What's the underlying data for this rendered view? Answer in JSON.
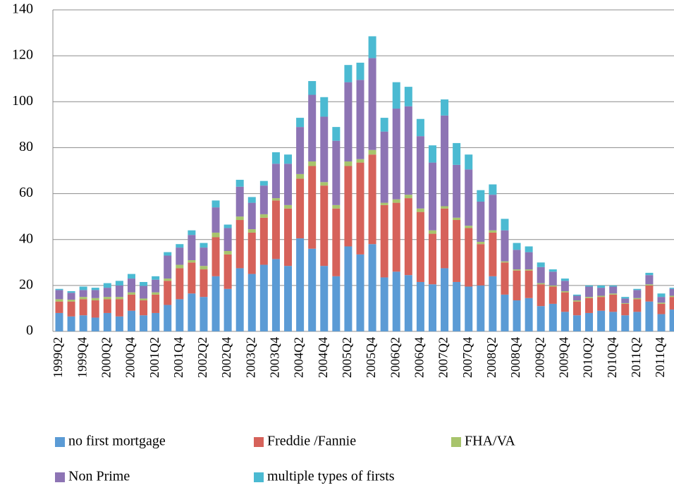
{
  "chart_data": {
    "type": "stacked-bar",
    "categories": [
      "1999Q2",
      null,
      "1999Q4",
      null,
      "2000Q2",
      null,
      "2000Q4",
      null,
      "2001Q2",
      null,
      "2001Q4",
      null,
      "2002Q2",
      null,
      "2002Q4",
      null,
      "2003Q2",
      null,
      "2003Q4",
      null,
      "2004Q2",
      null,
      "2004Q4",
      null,
      "2005Q2",
      null,
      "2005Q4",
      null,
      "2006Q2",
      null,
      "2006Q4",
      null,
      "2007Q2",
      null,
      "2007Q4",
      null,
      "2008Q2",
      null,
      "2008Q4",
      null,
      "2009Q2",
      null,
      "2009Q4",
      null,
      "2010Q2",
      null,
      "2010Q4",
      null,
      "2011Q2",
      null,
      "2011Q4",
      null
    ],
    "series": [
      {
        "name": "no first mortgage",
        "color": "#5b9bd5",
        "values": [
          8,
          6.5,
          7,
          6,
          8,
          6.5,
          9,
          7,
          8,
          11.5,
          14,
          16.5,
          15,
          24,
          18.5,
          27.5,
          25,
          29,
          31.5,
          28.5,
          40.5,
          36,
          28.5,
          24,
          37,
          33.5,
          38,
          23.5,
          26,
          24.5,
          21.5,
          20.5,
          27.5,
          21.5,
          19.5,
          20,
          24,
          16,
          13.5,
          14.5,
          11,
          12,
          8.5,
          7,
          8,
          9,
          8.5,
          7,
          8.5,
          13,
          7.5,
          9.5
        ]
      },
      {
        "name": "Freddie /Fannie",
        "color": "#d6625a",
        "values": [
          5,
          6.5,
          7,
          7.5,
          6,
          7.5,
          7,
          6.5,
          8,
          10.5,
          13.5,
          13.5,
          12,
          17,
          15,
          21,
          18,
          20.5,
          25.5,
          25,
          26,
          36,
          35,
          29.5,
          35,
          40,
          39,
          31.5,
          30,
          33.5,
          30.5,
          22,
          26,
          27,
          25.5,
          18,
          19,
          14,
          13,
          12,
          9.5,
          7.5,
          8.5,
          6,
          6.5,
          6,
          7.5,
          5,
          5.5,
          7,
          4.5,
          5.5
        ]
      },
      {
        "name": "FHA/VA",
        "color": "#a8c46c",
        "values": [
          1,
          0.8,
          1,
          1,
          1,
          1,
          1,
          0.8,
          1,
          1,
          1.5,
          1,
          1.5,
          2,
          1.5,
          1.5,
          1.5,
          1.5,
          1,
          1.5,
          2,
          2,
          1.5,
          1.5,
          2,
          1.5,
          2,
          1,
          1.5,
          1.5,
          1.5,
          1.5,
          1,
          1,
          1,
          1,
          1,
          0.5,
          0.5,
          0.5,
          0.5,
          0.5,
          0.5,
          0.5,
          0.5,
          0.5,
          0.5,
          0.3,
          0.5,
          0.5,
          0.5,
          0.5
        ]
      },
      {
        "name": "Non Prime",
        "color": "#8d74b4",
        "values": [
          4,
          3,
          3,
          3.5,
          4,
          5,
          6,
          5.5,
          5.5,
          10,
          7.5,
          11,
          8,
          11,
          10,
          13,
          11.5,
          12.5,
          15,
          18,
          20.5,
          29,
          28.5,
          28,
          34.5,
          34.5,
          40,
          31,
          39.5,
          38.5,
          31.5,
          29.5,
          39.5,
          23,
          24.5,
          17.5,
          15.5,
          13.5,
          8.5,
          7.5,
          7,
          6,
          4.5,
          2,
          4.5,
          3.5,
          3,
          2,
          3.5,
          4,
          2.5,
          3
        ]
      },
      {
        "name": "multiple types of firsts",
        "color": "#4bbad2",
        "values": [
          0.5,
          0.7,
          1.5,
          1,
          2,
          2,
          2,
          1.7,
          1.5,
          1.5,
          1.5,
          2,
          2,
          3,
          1.5,
          3,
          2.5,
          2,
          5,
          4,
          4,
          6,
          8.5,
          6,
          7.5,
          7.5,
          9.5,
          6,
          11.5,
          8.5,
          7.5,
          7.5,
          7,
          9.5,
          6.5,
          5,
          4.5,
          5,
          3,
          2.5,
          2,
          1,
          1,
          0.5,
          0.5,
          1,
          0.5,
          0.7,
          0.5,
          1,
          1.5,
          0.5
        ]
      }
    ],
    "ylim": [
      0,
      140
    ],
    "yticks": [
      0,
      20,
      40,
      60,
      80,
      100,
      120,
      140
    ],
    "grid": true,
    "legend": "bottom"
  }
}
